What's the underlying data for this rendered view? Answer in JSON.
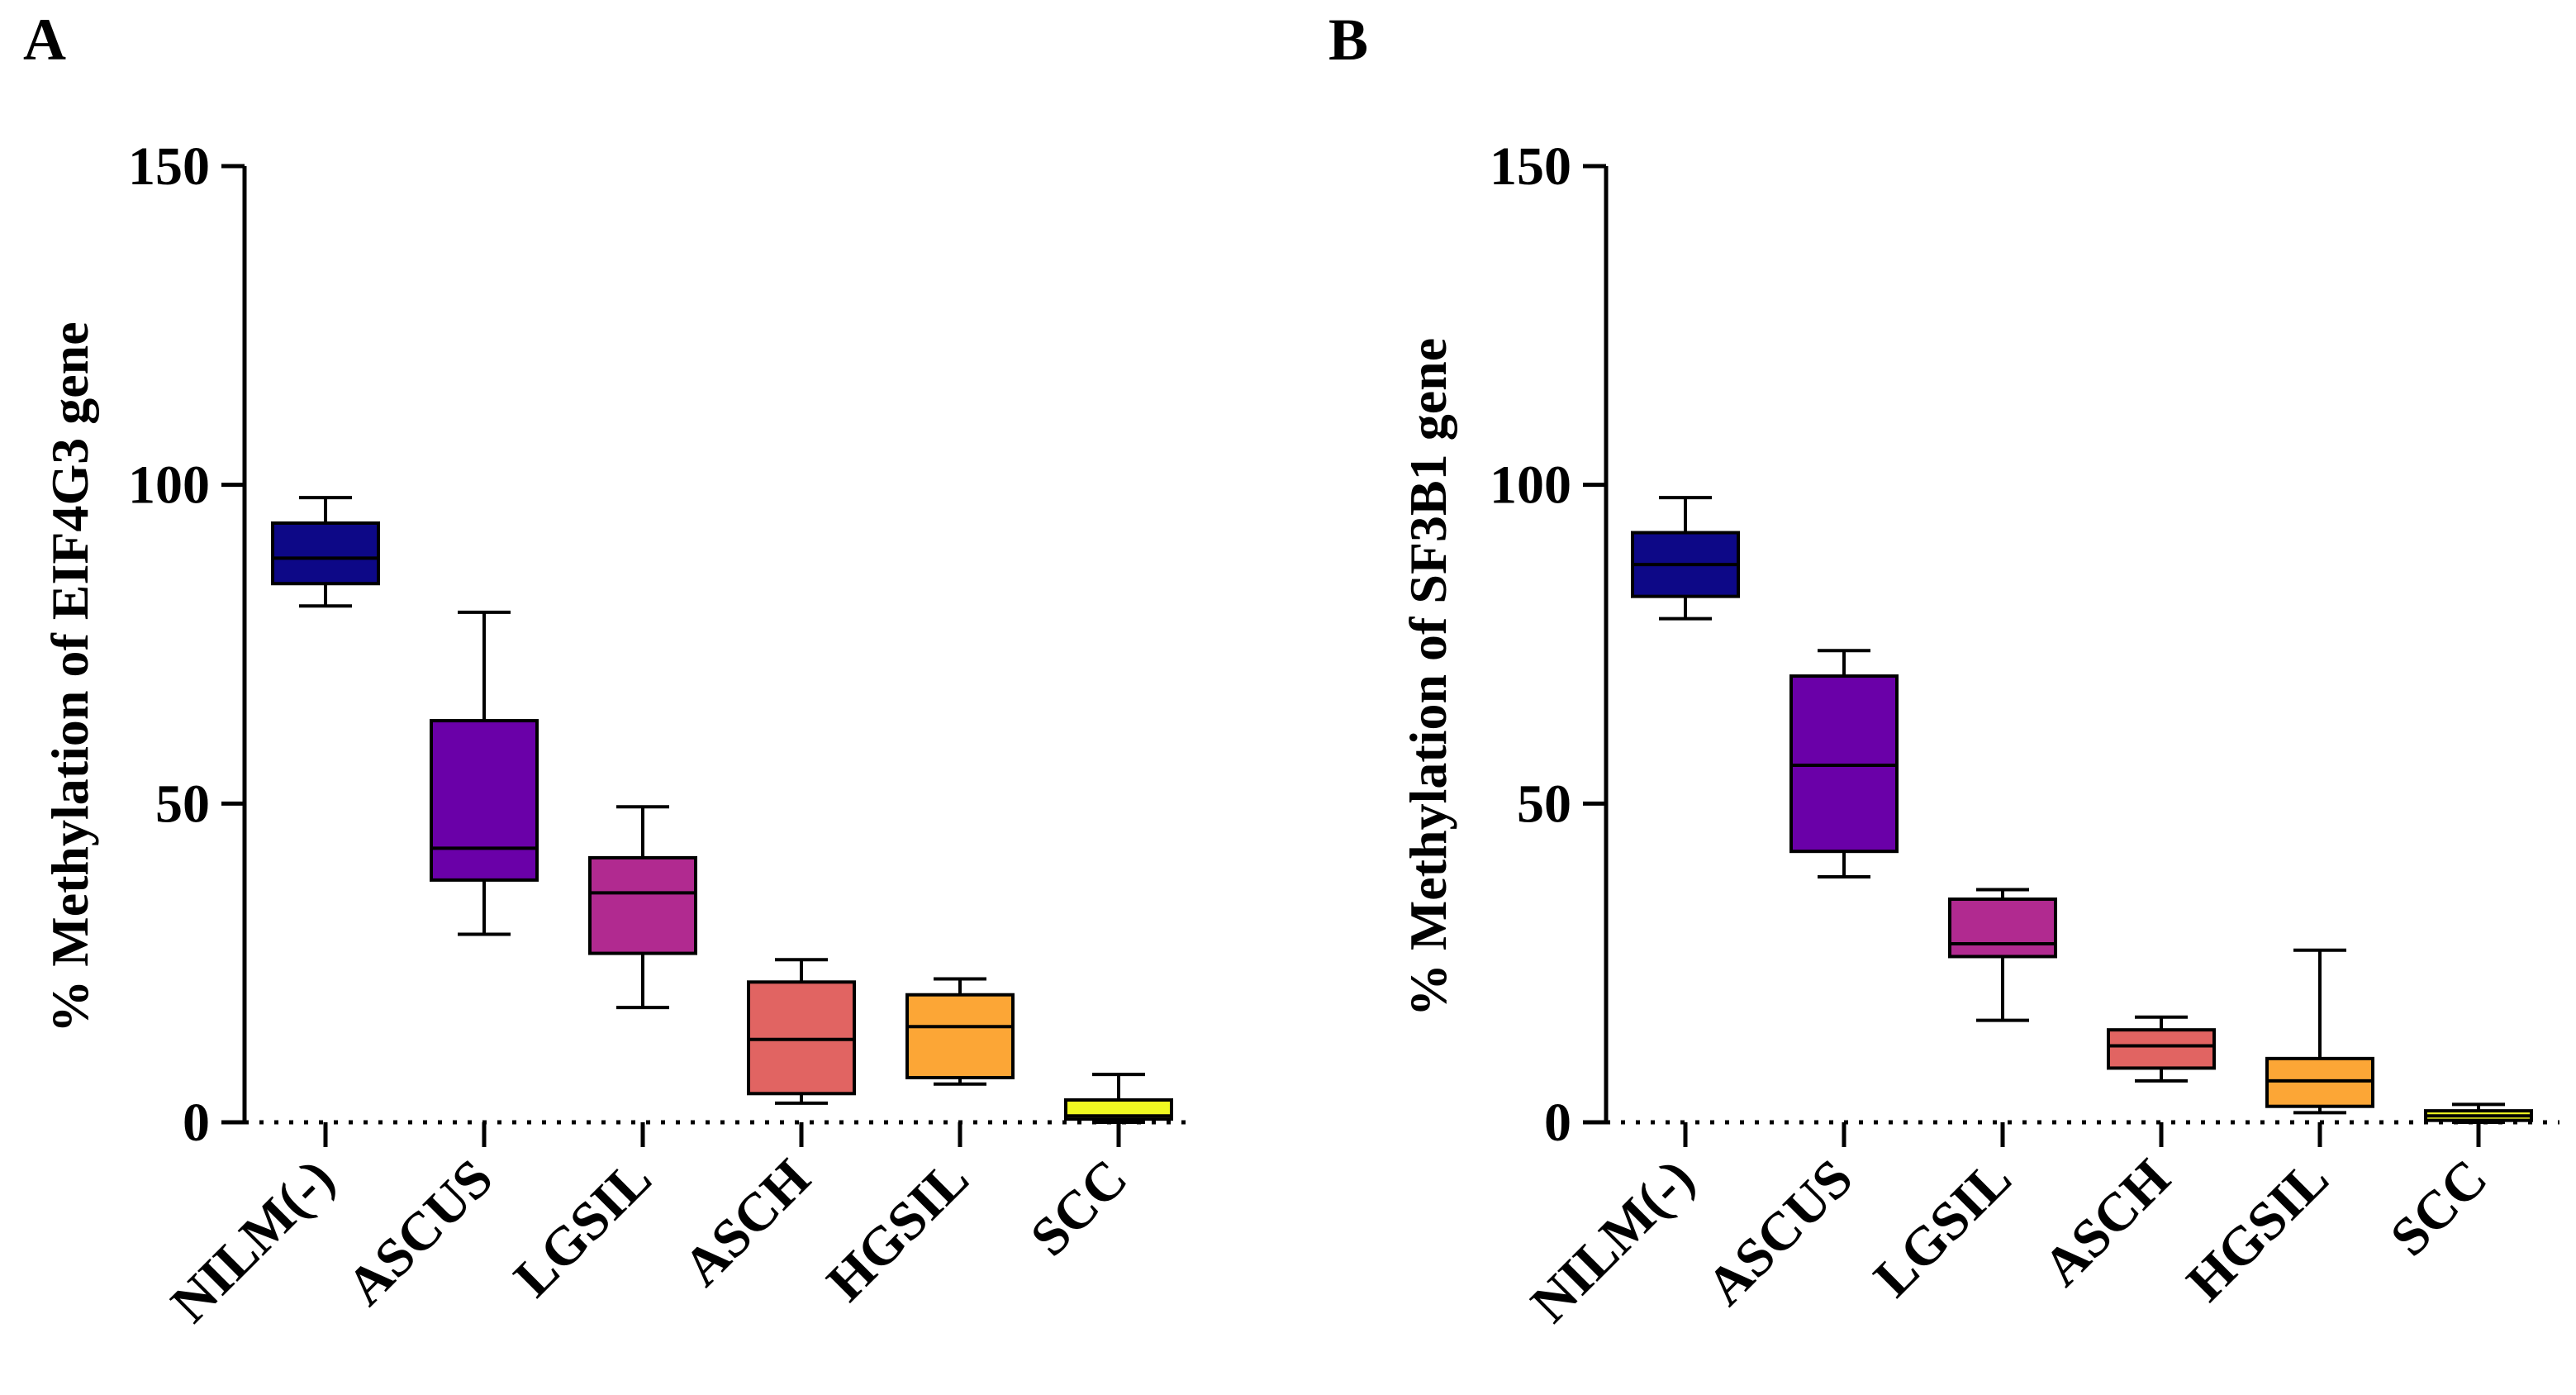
{
  "chart_data": [
    {
      "type": "box",
      "panel_label": "A",
      "ylabel": "% Methylation of EIF4G3 gene",
      "ylim": [
        0,
        150
      ],
      "yticks": [
        0,
        50,
        100,
        150
      ],
      "categories": [
        "NILM(-)",
        "ASCUS",
        "LGSIL",
        "ASCH",
        "HGSIL",
        "SCC"
      ],
      "colors": [
        "#0d0887",
        "#6a00a8",
        "#b12a90",
        "#e16462",
        "#fca636",
        "#f0f921"
      ],
      "boxes": [
        {
          "min": 81,
          "q1": 84.5,
          "median": 88.5,
          "q3": 94,
          "max": 98
        },
        {
          "min": 29.5,
          "q1": 38,
          "median": 43,
          "q3": 63,
          "max": 80
        },
        {
          "min": 18,
          "q1": 26.5,
          "median": 36,
          "q3": 41.5,
          "max": 49.5
        },
        {
          "min": 3,
          "q1": 4.5,
          "median": 13,
          "q3": 22,
          "max": 25.5
        },
        {
          "min": 6,
          "q1": 7,
          "median": 15,
          "q3": 20,
          "max": 22.5
        },
        {
          "min": 0,
          "q1": 0.5,
          "median": 1,
          "q3": 3.5,
          "max": 7.5
        }
      ]
    },
    {
      "type": "box",
      "panel_label": "B",
      "ylabel": "% Methylation of SF3B1 gene",
      "ylim": [
        0,
        150
      ],
      "yticks": [
        0,
        50,
        100,
        150
      ],
      "categories": [
        "NILM(-)",
        "ASCUS",
        "LGSIL",
        "ASCH",
        "HGSIL",
        "SCC"
      ],
      "colors": [
        "#0d0887",
        "#6a00a8",
        "#b12a90",
        "#e16462",
        "#fca636",
        "#f0f921"
      ],
      "boxes": [
        {
          "min": 79,
          "q1": 82.5,
          "median": 87.5,
          "q3": 92.5,
          "max": 98
        },
        {
          "min": 38.5,
          "q1": 42.5,
          "median": 56,
          "q3": 70,
          "max": 74
        },
        {
          "min": 16,
          "q1": 26,
          "median": 28,
          "q3": 35,
          "max": 36.5
        },
        {
          "min": 6.5,
          "q1": 8.5,
          "median": 12,
          "q3": 14.5,
          "max": 16.5
        },
        {
          "min": 1.5,
          "q1": 2.5,
          "median": 6.5,
          "q3": 10,
          "max": 27
        },
        {
          "min": 0,
          "q1": 0.3,
          "median": 1,
          "q3": 1.8,
          "max": 2.8
        }
      ]
    }
  ]
}
